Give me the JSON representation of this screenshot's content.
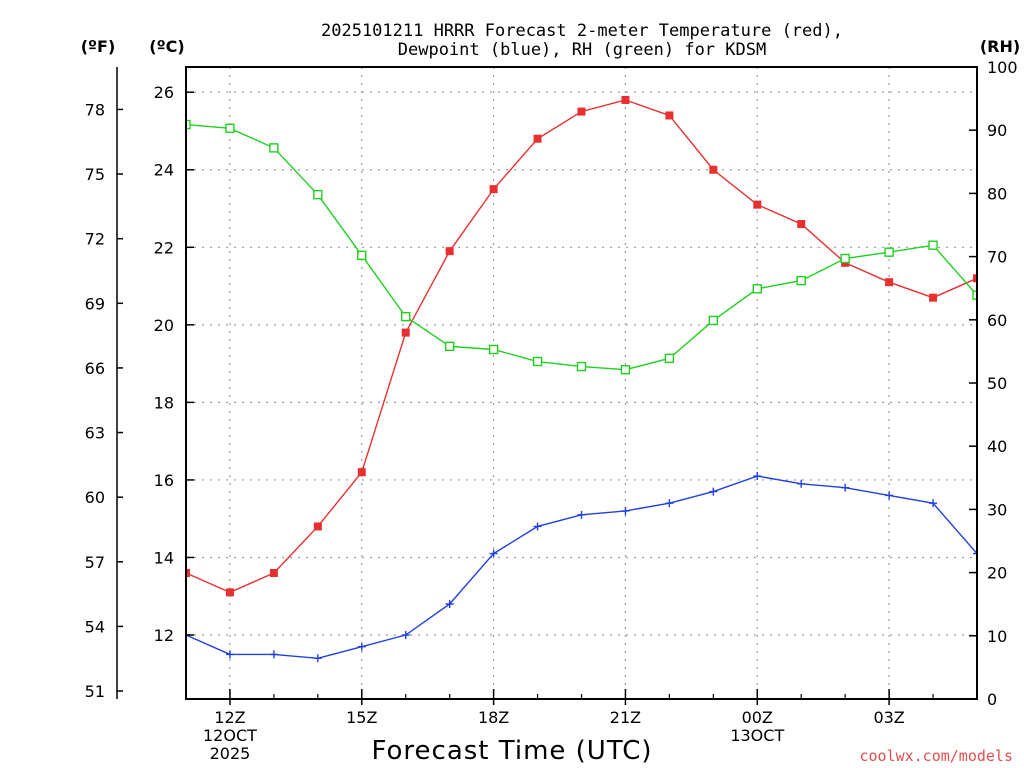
{
  "chart_data": {
    "type": "line",
    "title_line1": "2025101211 HRRR Forecast 2-meter Temperature (red),",
    "title_line2": "Dewpoint (blue), RH (green) for KDSM",
    "xlabel": "Forecast Time (UTC)",
    "credit": "coolwx.com/models",
    "unit_f": "(ºF)",
    "unit_c": "(ºC)",
    "unit_rh": "(RH)",
    "x_range": [
      11,
      29
    ],
    "c_range": [
      10.35,
      26.65
    ],
    "rh_range": [
      0,
      100
    ],
    "c_ticks": [
      12,
      14,
      16,
      18,
      20,
      22,
      24,
      26
    ],
    "f_ticks": [
      51,
      54,
      57,
      60,
      63,
      66,
      69,
      72,
      75,
      78
    ],
    "rh_ticks": [
      0,
      10,
      20,
      30,
      40,
      50,
      60,
      70,
      80,
      90,
      100
    ],
    "x_ticks": [
      {
        "x": 12,
        "label": "12Z",
        "sub1": "12OCT",
        "sub2": "2025"
      },
      {
        "x": 15,
        "label": "15Z",
        "sub1": "",
        "sub2": ""
      },
      {
        "x": 18,
        "label": "18Z",
        "sub1": "",
        "sub2": ""
      },
      {
        "x": 21,
        "label": "21Z",
        "sub1": "",
        "sub2": ""
      },
      {
        "x": 24,
        "label": "00Z",
        "sub1": "13OCT",
        "sub2": ""
      },
      {
        "x": 27,
        "label": "03Z",
        "sub1": "",
        "sub2": ""
      }
    ],
    "x_minor": [
      13,
      14,
      16,
      17,
      19,
      20,
      22,
      23,
      25,
      26,
      28
    ],
    "hours": [
      11,
      12,
      13,
      14,
      15,
      16,
      17,
      18,
      19,
      20,
      21,
      22,
      23,
      24,
      25,
      26,
      27,
      28,
      29
    ],
    "series": [
      {
        "name": "Temperature",
        "color": "#e83030",
        "axis": "c",
        "marker": "filled-square",
        "values": [
          13.6,
          13.1,
          13.6,
          14.8,
          16.2,
          19.8,
          21.9,
          23.5,
          24.8,
          25.5,
          25.8,
          25.4,
          24.0,
          23.1,
          22.6,
          21.6,
          21.1,
          20.7,
          21.2
        ]
      },
      {
        "name": "Dewpoint",
        "color": "#2040e0",
        "axis": "c",
        "marker": "plus",
        "values": [
          12.0,
          11.5,
          11.5,
          11.4,
          11.7,
          12.0,
          12.8,
          14.1,
          14.8,
          15.1,
          15.2,
          15.4,
          15.7,
          16.1,
          15.9,
          15.8,
          15.6,
          15.4,
          14.1
        ]
      },
      {
        "name": "RH",
        "color": "#20d020",
        "axis": "rh",
        "marker": "open-square",
        "values": [
          90.9,
          90.3,
          87.2,
          79.8,
          70.2,
          60.5,
          55.8,
          55.3,
          53.4,
          52.6,
          52.1,
          53.9,
          59.9,
          64.9,
          66.2,
          69.7,
          70.7,
          71.8,
          63.9
        ]
      }
    ],
    "colors": {
      "frame": "#000000",
      "grid": "#9a9a9a",
      "background": "#ffffff"
    }
  }
}
